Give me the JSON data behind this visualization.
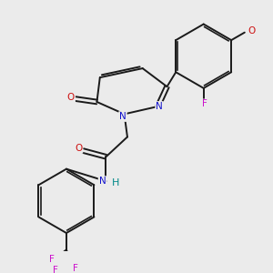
{
  "background_color": "#ebebeb",
  "bond_color": "#1a1a1a",
  "atom_colors": {
    "N": "#1010cc",
    "O": "#cc1010",
    "F": "#cc10cc",
    "C": "#1a1a1a",
    "H": "#008888"
  },
  "font_size": 7.0,
  "lw": 1.4
}
